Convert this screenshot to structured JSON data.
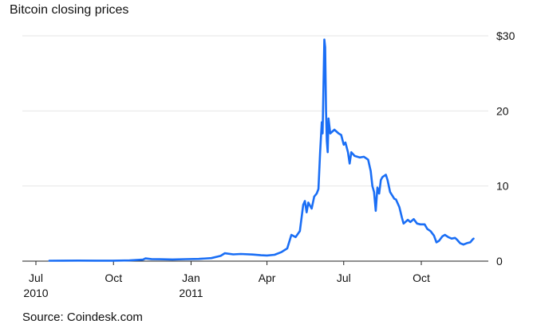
{
  "chart_data": {
    "type": "line",
    "title": "Bitcoin closing prices",
    "source": "Source: Coindesk.com",
    "xlabel": "",
    "ylabel": "",
    "x_range": [
      "2010-07-01",
      "2011-12-01"
    ],
    "ylim": [
      0,
      30
    ],
    "grid": true,
    "line_color": "#1a6ef5",
    "y_ticks": [
      {
        "value": 0,
        "label": "0"
      },
      {
        "value": 10,
        "label": "10"
      },
      {
        "value": 20,
        "label": "20"
      },
      {
        "value": 30,
        "label": "$30"
      }
    ],
    "x_ticks": [
      {
        "date": "2010-07-01",
        "label": "Jul",
        "sublabel": "2010"
      },
      {
        "date": "2010-10-01",
        "label": "Oct",
        "sublabel": ""
      },
      {
        "date": "2011-01-01",
        "label": "Jan",
        "sublabel": "2011"
      },
      {
        "date": "2011-04-01",
        "label": "Apr",
        "sublabel": ""
      },
      {
        "date": "2011-07-01",
        "label": "Jul",
        "sublabel": ""
      },
      {
        "date": "2011-10-01",
        "label": "Oct",
        "sublabel": ""
      }
    ],
    "series": [
      {
        "points": [
          [
            "2010-07-17",
            0.05
          ],
          [
            "2010-08-01",
            0.06
          ],
          [
            "2010-08-20",
            0.07
          ],
          [
            "2010-09-10",
            0.06
          ],
          [
            "2010-10-01",
            0.06
          ],
          [
            "2010-10-20",
            0.1
          ],
          [
            "2010-11-05",
            0.2
          ],
          [
            "2010-11-08",
            0.36
          ],
          [
            "2010-11-15",
            0.28
          ],
          [
            "2010-11-25",
            0.25
          ],
          [
            "2010-12-10",
            0.22
          ],
          [
            "2010-12-25",
            0.26
          ],
          [
            "2011-01-10",
            0.3
          ],
          [
            "2011-01-25",
            0.4
          ],
          [
            "2011-02-05",
            0.7
          ],
          [
            "2011-02-10",
            1.05
          ],
          [
            "2011-02-20",
            0.9
          ],
          [
            "2011-03-01",
            0.95
          ],
          [
            "2011-03-15",
            0.88
          ],
          [
            "2011-03-25",
            0.78
          ],
          [
            "2011-04-01",
            0.75
          ],
          [
            "2011-04-10",
            0.85
          ],
          [
            "2011-04-18",
            1.2
          ],
          [
            "2011-04-25",
            1.7
          ],
          [
            "2011-04-30",
            3.5
          ],
          [
            "2011-05-05",
            3.2
          ],
          [
            "2011-05-10",
            4.0
          ],
          [
            "2011-05-14",
            7.5
          ],
          [
            "2011-05-16",
            8.0
          ],
          [
            "2011-05-18",
            6.5
          ],
          [
            "2011-05-20",
            7.8
          ],
          [
            "2011-05-24",
            7.0
          ],
          [
            "2011-05-27",
            8.6
          ],
          [
            "2011-05-30",
            9.0
          ],
          [
            "2011-06-01",
            9.6
          ],
          [
            "2011-06-03",
            14.5
          ],
          [
            "2011-06-05",
            18.5
          ],
          [
            "2011-06-06",
            17.0
          ],
          [
            "2011-06-08",
            29.5
          ],
          [
            "2011-06-09",
            28.5
          ],
          [
            "2011-06-10",
            20.0
          ],
          [
            "2011-06-11",
            16.0
          ],
          [
            "2011-06-12",
            14.5
          ],
          [
            "2011-06-13",
            19.0
          ],
          [
            "2011-06-15",
            17.0
          ],
          [
            "2011-06-20",
            17.5
          ],
          [
            "2011-06-25",
            17.0
          ],
          [
            "2011-06-28",
            16.8
          ],
          [
            "2011-07-01",
            15.5
          ],
          [
            "2011-07-03",
            15.8
          ],
          [
            "2011-07-06",
            14.5
          ],
          [
            "2011-07-08",
            13.0
          ],
          [
            "2011-07-10",
            14.5
          ],
          [
            "2011-07-14",
            14.0
          ],
          [
            "2011-07-20",
            13.8
          ],
          [
            "2011-07-25",
            13.9
          ],
          [
            "2011-07-30",
            13.5
          ],
          [
            "2011-08-02",
            12.0
          ],
          [
            "2011-08-04",
            10.0
          ],
          [
            "2011-08-06",
            9.2
          ],
          [
            "2011-08-08",
            6.7
          ],
          [
            "2011-08-10",
            9.8
          ],
          [
            "2011-08-12",
            9.0
          ],
          [
            "2011-08-14",
            10.8
          ],
          [
            "2011-08-16",
            11.2
          ],
          [
            "2011-08-20",
            11.5
          ],
          [
            "2011-08-22",
            10.8
          ],
          [
            "2011-08-25",
            9.2
          ],
          [
            "2011-08-30",
            8.3
          ],
          [
            "2011-09-01",
            8.2
          ],
          [
            "2011-09-05",
            7.2
          ],
          [
            "2011-09-08",
            5.8
          ],
          [
            "2011-09-10",
            5.0
          ],
          [
            "2011-09-15",
            5.5
          ],
          [
            "2011-09-18",
            5.2
          ],
          [
            "2011-09-22",
            5.6
          ],
          [
            "2011-09-26",
            5.0
          ],
          [
            "2011-09-30",
            4.9
          ],
          [
            "2011-10-05",
            4.9
          ],
          [
            "2011-10-08",
            4.3
          ],
          [
            "2011-10-12",
            4.0
          ],
          [
            "2011-10-16",
            3.4
          ],
          [
            "2011-10-19",
            2.5
          ],
          [
            "2011-10-22",
            2.7
          ],
          [
            "2011-10-26",
            3.3
          ],
          [
            "2011-10-29",
            3.5
          ],
          [
            "2011-11-02",
            3.2
          ],
          [
            "2011-11-06",
            3.0
          ],
          [
            "2011-11-10",
            3.1
          ],
          [
            "2011-11-12",
            2.9
          ],
          [
            "2011-11-16",
            2.4
          ],
          [
            "2011-11-20",
            2.2
          ],
          [
            "2011-11-24",
            2.4
          ],
          [
            "2011-11-28",
            2.5
          ],
          [
            "2011-12-01",
            2.9
          ],
          [
            "2011-12-02",
            3.0
          ]
        ]
      }
    ]
  }
}
